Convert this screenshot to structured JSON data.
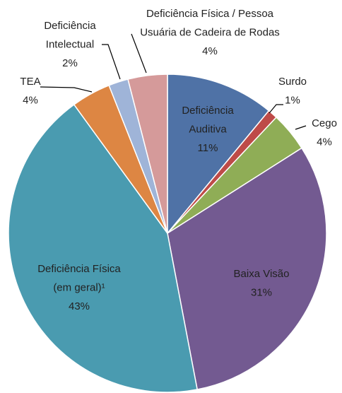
{
  "chart_data": {
    "type": "pie",
    "categories": [
      [
        "Deficiência",
        "Auditiva"
      ],
      [
        "Surdo"
      ],
      [
        "Cego"
      ],
      [
        "Baixa Visão"
      ],
      [
        "Deficiência Física",
        "(em geral)¹"
      ],
      [
        "TEA"
      ],
      [
        "Deficiência",
        "Intelectual"
      ],
      [
        "Deficiência Física / Pessoa",
        "Usuária de Cadeira de Rodas"
      ]
    ],
    "values": [
      11,
      1,
      4,
      31,
      43,
      4,
      2,
      4
    ],
    "value_labels": [
      "11%",
      "1%",
      "4%",
      "31%",
      "43%",
      "4%",
      "2%",
      "4%"
    ],
    "colors": [
      "#4f72a6",
      "#be4b48",
      "#8fad56",
      "#735a91",
      "#4a9bb0",
      "#dd8643",
      "#9fb4d8",
      "#d59a9a"
    ]
  }
}
